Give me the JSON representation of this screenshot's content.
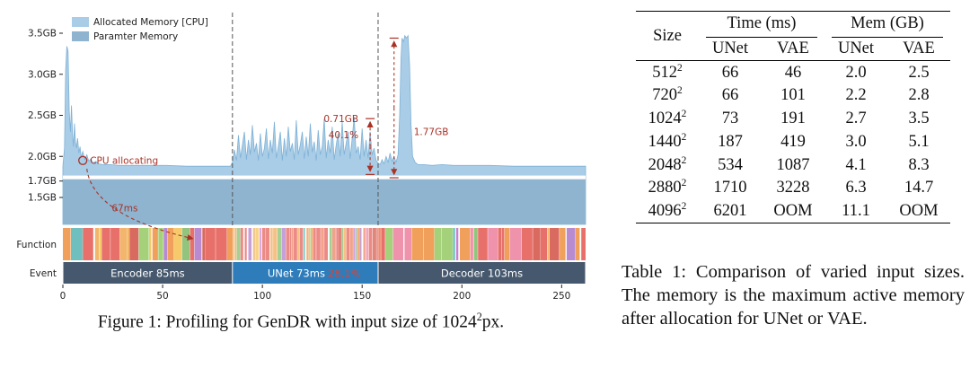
{
  "figure": {
    "caption_prefix": "Figure 1: Profiling for GenDR with input size of 1024",
    "caption_sup": "2",
    "caption_suffix": "px."
  },
  "table": {
    "caption": "Table 1: Comparison of varied input sizes. The memory is the maximum active memory after allocation for UNet or VAE.",
    "headers": {
      "size": "Size",
      "time_group": "Time (ms)",
      "mem_group": "Mem (GB)",
      "sub": [
        "UNet",
        "VAE",
        "UNet",
        "VAE"
      ]
    },
    "rows": [
      [
        "512²",
        "66",
        "46",
        "2.0",
        "2.5"
      ],
      [
        "720²",
        "66",
        "101",
        "2.2",
        "2.8"
      ],
      [
        "1024²",
        "73",
        "191",
        "2.7",
        "3.5"
      ],
      [
        "1440²",
        "187",
        "419",
        "3.0",
        "5.1"
      ],
      [
        "2048²",
        "534",
        "1087",
        "4.1",
        "8.3"
      ],
      [
        "2880²",
        "1710",
        "3228",
        "6.3",
        "14.7"
      ],
      [
        "4096²",
        "6201",
        "OOM",
        "11.1",
        "OOM"
      ]
    ]
  },
  "chart_data": {
    "type": "area",
    "title": "",
    "xlabel": "",
    "ylabel": "",
    "x_domain": [
      0,
      262
    ],
    "x_ticks": [
      0,
      50,
      100,
      150,
      200,
      250
    ],
    "y_ticks": [
      {
        "v": 3.5,
        "label": "3.5GB"
      },
      {
        "v": 3.0,
        "label": "3.0GB"
      },
      {
        "v": 2.5,
        "label": "2.5GB"
      },
      {
        "v": 2.0,
        "label": "2.0GB"
      },
      {
        "v": 1.7,
        "label": "1.7GB"
      },
      {
        "v": 1.5,
        "label": "1.5GB"
      }
    ],
    "legend": [
      {
        "label": "Allocated Memory [CPU]",
        "color": "#a9cde6"
      },
      {
        "label": "Paramter Memory",
        "color": "#8fb4cf"
      }
    ],
    "param_memory_gb": 1.72,
    "separators_ms": [
      85,
      158
    ],
    "row_labels": {
      "function": "Function",
      "event": "Event"
    },
    "events": [
      {
        "label": "Encoder 85ms",
        "start": 0,
        "end": 85,
        "highlight": false
      },
      {
        "label": "UNet 73ms",
        "start": 85,
        "end": 158,
        "highlight": true,
        "extra": "28.1%"
      },
      {
        "label": "Decoder 103ms",
        "start": 158,
        "end": 262,
        "highlight": false
      }
    ],
    "annotations": {
      "cpu_alloc": {
        "text": "CPU allocating",
        "marker_ms": 10,
        "marker_gb": 1.95
      },
      "arrow_label": {
        "text": "67ms",
        "ms": 31,
        "gb": 1.33,
        "from_ms": 12,
        "from_gb": 1.85,
        "to_ms": 65,
        "to_gb": 1.0
      },
      "range_unet": {
        "labels": [
          "0.71GB",
          "40.1%"
        ],
        "ms": 154,
        "top_gb": 2.46,
        "bottom_gb": 1.78
      },
      "range_decoder": {
        "label": "1.77GB",
        "ms": 166,
        "top_gb": 3.44,
        "bottom_gb": 1.74
      }
    },
    "allocated_series": [
      [
        0,
        1.88
      ],
      [
        0.8,
        2.1
      ],
      [
        1.4,
        3.05
      ],
      [
        2,
        3.34
      ],
      [
        2.6,
        3.28
      ],
      [
        3.2,
        2.55
      ],
      [
        3.8,
        2.3
      ],
      [
        4.3,
        2.62
      ],
      [
        4.8,
        2.28
      ],
      [
        5.3,
        2.12
      ],
      [
        5.8,
        2.4
      ],
      [
        6.3,
        2.18
      ],
      [
        6.8,
        2.1
      ],
      [
        7.4,
        2.22
      ],
      [
        8,
        2.04
      ],
      [
        8.6,
        2.12
      ],
      [
        9.2,
        1.99
      ],
      [
        10,
        2.06
      ],
      [
        11,
        1.96
      ],
      [
        12,
        2.02
      ],
      [
        13,
        1.94
      ],
      [
        14,
        1.97
      ],
      [
        15,
        1.92
      ],
      [
        16.5,
        1.94
      ],
      [
        18,
        1.91
      ],
      [
        20,
        1.9
      ],
      [
        24,
        1.9
      ],
      [
        28,
        1.89
      ],
      [
        34,
        1.89
      ],
      [
        42,
        1.89
      ],
      [
        52,
        1.89
      ],
      [
        62,
        1.88
      ],
      [
        72,
        1.88
      ],
      [
        84,
        1.88
      ],
      [
        85,
        1.93
      ],
      [
        86,
        2.08
      ],
      [
        87,
        1.95
      ],
      [
        88,
        2.26
      ],
      [
        89,
        1.98
      ],
      [
        90,
        2.14
      ],
      [
        91,
        2.3
      ],
      [
        92,
        1.96
      ],
      [
        93,
        2.2
      ],
      [
        94,
        2.02
      ],
      [
        95,
        2.38
      ],
      [
        96,
        2.05
      ],
      [
        97,
        2.16
      ],
      [
        98,
        1.95
      ],
      [
        99,
        2.28
      ],
      [
        100,
        2.0
      ],
      [
        101,
        2.1
      ],
      [
        102,
        2.34
      ],
      [
        103,
        1.97
      ],
      [
        104,
        2.2
      ],
      [
        105,
        2.04
      ],
      [
        106,
        2.42
      ],
      [
        107,
        1.98
      ],
      [
        108,
        2.12
      ],
      [
        109,
        2.3
      ],
      [
        110,
        1.95
      ],
      [
        111,
        2.22
      ],
      [
        112,
        2.0
      ],
      [
        113,
        2.36
      ],
      [
        114,
        2.06
      ],
      [
        115,
        2.16
      ],
      [
        116,
        1.96
      ],
      [
        117,
        2.44
      ],
      [
        118,
        2.02
      ],
      [
        119,
        2.14
      ],
      [
        120,
        2.3
      ],
      [
        121,
        1.97
      ],
      [
        122,
        2.24
      ],
      [
        123,
        2.0
      ],
      [
        124,
        2.4
      ],
      [
        125,
        2.05
      ],
      [
        126,
        2.18
      ],
      [
        127,
        1.95
      ],
      [
        128,
        2.32
      ],
      [
        129,
        2.02
      ],
      [
        130,
        2.12
      ],
      [
        131,
        2.46
      ],
      [
        132,
        1.98
      ],
      [
        133,
        2.2
      ],
      [
        134,
        2.04
      ],
      [
        135,
        2.36
      ],
      [
        136,
        1.96
      ],
      [
        137,
        2.14
      ],
      [
        138,
        2.28
      ],
      [
        139,
        2.0
      ],
      [
        140,
        2.42
      ],
      [
        141,
        2.02
      ],
      [
        142,
        2.16
      ],
      [
        143,
        2.3
      ],
      [
        144,
        1.97
      ],
      [
        145,
        2.22
      ],
      [
        146,
        2.48
      ],
      [
        147,
        2.04
      ],
      [
        148,
        2.12
      ],
      [
        149,
        1.96
      ],
      [
        150,
        2.34
      ],
      [
        151,
        2.0
      ],
      [
        152,
        2.2
      ],
      [
        153,
        1.98
      ],
      [
        154,
        2.3
      ],
      [
        155,
        2.02
      ],
      [
        156,
        2.1
      ],
      [
        157,
        1.95
      ],
      [
        158,
        1.92
      ],
      [
        159,
        1.9
      ],
      [
        160,
        1.96
      ],
      [
        161,
        1.91
      ],
      [
        162,
        2.0
      ],
      [
        163,
        1.93
      ],
      [
        164,
        2.04
      ],
      [
        165,
        1.94
      ],
      [
        166,
        2.0
      ],
      [
        167,
        1.93
      ],
      [
        168,
        2.02
      ],
      [
        168.8,
        2.5
      ],
      [
        169.5,
        3.2
      ],
      [
        170,
        3.44
      ],
      [
        170.8,
        3.4
      ],
      [
        171.4,
        3.47
      ],
      [
        172.2,
        3.44
      ],
      [
        173,
        3.47
      ],
      [
        173.8,
        3.1
      ],
      [
        174.5,
        2.4
      ],
      [
        175.3,
        2.0
      ],
      [
        176.5,
        1.93
      ],
      [
        178,
        1.9
      ],
      [
        181,
        1.9
      ],
      [
        185,
        1.89
      ],
      [
        190,
        1.9
      ],
      [
        196,
        1.89
      ],
      [
        204,
        1.89
      ],
      [
        214,
        1.89
      ],
      [
        226,
        1.88
      ],
      [
        240,
        1.88
      ],
      [
        252,
        1.88
      ],
      [
        262,
        1.88
      ]
    ],
    "colors": {
      "allocated": "#a9cde6",
      "allocated_stroke": "#7fb1d6",
      "param": "#8fb4cf",
      "event_dark": "#46586d",
      "event_blue": "#2e7cba",
      "annotation_red": "#a93226",
      "percent_red": "#d8453a",
      "axis_text": "#222222",
      "function_palette": [
        "#f0a05a",
        "#e8706a",
        "#ef8d72",
        "#f2b56b",
        "#e8706a",
        "#f0a05a",
        "#f6c96a",
        "#93c47d",
        "#b88bd1",
        "#ef93ac",
        "#e8706a",
        "#f0a05a",
        "#6fbfbf",
        "#d96a5f",
        "#f2b56b",
        "#a4d17a",
        "#e8706a",
        "#c77fd1"
      ]
    }
  }
}
